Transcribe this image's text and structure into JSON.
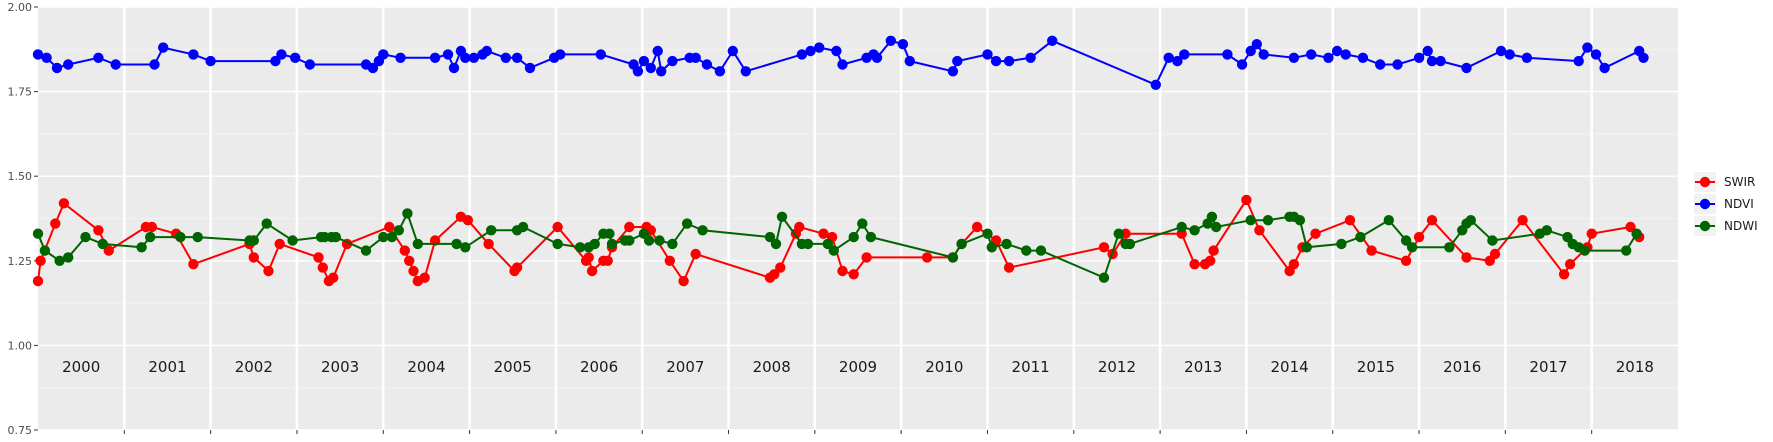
{
  "chart_data": {
    "type": "line",
    "title": "",
    "xlabel": "",
    "ylabel": "",
    "ylim": [
      0.75,
      2.0
    ],
    "y_ticks": [
      "0.75",
      "1.00",
      "1.25",
      "1.50",
      "1.75",
      "2.00"
    ],
    "x_range": [
      2000.0,
      2019.0
    ],
    "panels": [
      "2000",
      "2001",
      "2002",
      "2003",
      "2004",
      "2005",
      "2006",
      "2007",
      "2008",
      "2009",
      "2010",
      "2011",
      "2012",
      "2013",
      "2014",
      "2015",
      "2016",
      "2017",
      "2018"
    ],
    "grid": true,
    "legend_position": "right",
    "series": [
      {
        "name": "SWIR",
        "color": "#ff0000",
        "points": [
          [
            2000.0,
            1.19
          ],
          [
            2000.03,
            1.25
          ],
          [
            2000.2,
            1.36
          ],
          [
            2000.3,
            1.42
          ],
          [
            2000.7,
            1.34
          ],
          [
            2000.82,
            1.28
          ],
          [
            2001.25,
            1.35
          ],
          [
            2001.32,
            1.35
          ],
          [
            2001.6,
            1.33
          ],
          [
            2001.8,
            1.24
          ],
          [
            2002.45,
            1.3
          ],
          [
            2002.5,
            1.26
          ],
          [
            2002.67,
            1.22
          ],
          [
            2002.8,
            1.3
          ],
          [
            2003.25,
            1.26
          ],
          [
            2003.3,
            1.23
          ],
          [
            2003.37,
            1.19
          ],
          [
            2003.42,
            1.2
          ],
          [
            2003.58,
            1.3
          ],
          [
            2004.07,
            1.35
          ],
          [
            2004.25,
            1.28
          ],
          [
            2004.3,
            1.25
          ],
          [
            2004.35,
            1.22
          ],
          [
            2004.4,
            1.19
          ],
          [
            2004.48,
            1.2
          ],
          [
            2004.6,
            1.31
          ],
          [
            2004.9,
            1.38
          ],
          [
            2004.98,
            1.37
          ],
          [
            2005.22,
            1.3
          ],
          [
            2005.52,
            1.22
          ],
          [
            2005.55,
            1.23
          ],
          [
            2006.02,
            1.35
          ],
          [
            2006.35,
            1.25
          ],
          [
            2006.38,
            1.26
          ],
          [
            2006.42,
            1.22
          ],
          [
            2006.55,
            1.25
          ],
          [
            2006.6,
            1.25
          ],
          [
            2006.65,
            1.29
          ],
          [
            2006.85,
            1.35
          ],
          [
            2007.05,
            1.35
          ],
          [
            2007.1,
            1.34
          ],
          [
            2007.32,
            1.25
          ],
          [
            2007.48,
            1.19
          ],
          [
            2007.62,
            1.27
          ],
          [
            2008.48,
            1.2
          ],
          [
            2008.53,
            1.21
          ],
          [
            2008.6,
            1.23
          ],
          [
            2008.78,
            1.33
          ],
          [
            2008.82,
            1.35
          ],
          [
            2009.1,
            1.33
          ],
          [
            2009.2,
            1.32
          ],
          [
            2009.32,
            1.22
          ],
          [
            2009.45,
            1.21
          ],
          [
            2009.6,
            1.26
          ],
          [
            2010.3,
            1.26
          ],
          [
            2010.6,
            1.26
          ],
          [
            2010.7,
            1.3
          ],
          [
            2010.88,
            1.35
          ],
          [
            2011.1,
            1.31
          ],
          [
            2011.25,
            1.23
          ],
          [
            2012.35,
            1.29
          ],
          [
            2012.45,
            1.27
          ],
          [
            2012.6,
            1.33
          ],
          [
            2013.25,
            1.33
          ],
          [
            2013.4,
            1.24
          ],
          [
            2013.52,
            1.24
          ],
          [
            2013.58,
            1.25
          ],
          [
            2013.62,
            1.28
          ],
          [
            2014.0,
            1.43
          ],
          [
            2014.15,
            1.34
          ],
          [
            2014.5,
            1.22
          ],
          [
            2014.55,
            1.24
          ],
          [
            2014.65,
            1.29
          ],
          [
            2014.8,
            1.33
          ],
          [
            2015.2,
            1.37
          ],
          [
            2015.45,
            1.28
          ],
          [
            2015.85,
            1.25
          ],
          [
            2016.0,
            1.32
          ],
          [
            2016.15,
            1.37
          ],
          [
            2016.55,
            1.26
          ],
          [
            2016.82,
            1.25
          ],
          [
            2016.88,
            1.27
          ],
          [
            2017.2,
            1.37
          ],
          [
            2017.68,
            1.21
          ],
          [
            2017.75,
            1.24
          ],
          [
            2017.95,
            1.29
          ],
          [
            2018.0,
            1.33
          ],
          [
            2018.45,
            1.35
          ],
          [
            2018.55,
            1.32
          ]
        ]
      },
      {
        "name": "NDVI",
        "color": "#0000ff",
        "points": [
          [
            2000.0,
            1.86
          ],
          [
            2000.1,
            1.85
          ],
          [
            2000.22,
            1.82
          ],
          [
            2000.35,
            1.83
          ],
          [
            2000.7,
            1.85
          ],
          [
            2000.9,
            1.83
          ],
          [
            2001.35,
            1.83
          ],
          [
            2001.45,
            1.88
          ],
          [
            2001.8,
            1.86
          ],
          [
            2002.0,
            1.84
          ],
          [
            2002.75,
            1.84
          ],
          [
            2002.82,
            1.86
          ],
          [
            2002.98,
            1.85
          ],
          [
            2003.15,
            1.83
          ],
          [
            2003.8,
            1.83
          ],
          [
            2003.88,
            1.82
          ],
          [
            2003.95,
            1.84
          ],
          [
            2004.0,
            1.86
          ],
          [
            2004.2,
            1.85
          ],
          [
            2004.6,
            1.85
          ],
          [
            2004.75,
            1.86
          ],
          [
            2004.82,
            1.82
          ],
          [
            2004.9,
            1.87
          ],
          [
            2004.95,
            1.85
          ],
          [
            2005.05,
            1.85
          ],
          [
            2005.15,
            1.86
          ],
          [
            2005.2,
            1.87
          ],
          [
            2005.42,
            1.85
          ],
          [
            2005.55,
            1.85
          ],
          [
            2005.7,
            1.82
          ],
          [
            2005.98,
            1.85
          ],
          [
            2006.05,
            1.86
          ],
          [
            2006.52,
            1.86
          ],
          [
            2006.9,
            1.83
          ],
          [
            2006.95,
            1.81
          ],
          [
            2007.02,
            1.84
          ],
          [
            2007.1,
            1.82
          ],
          [
            2007.18,
            1.87
          ],
          [
            2007.22,
            1.81
          ],
          [
            2007.35,
            1.84
          ],
          [
            2007.55,
            1.85
          ],
          [
            2007.62,
            1.85
          ],
          [
            2007.75,
            1.83
          ],
          [
            2007.9,
            1.81
          ],
          [
            2008.05,
            1.87
          ],
          [
            2008.2,
            1.81
          ],
          [
            2008.85,
            1.86
          ],
          [
            2008.95,
            1.87
          ],
          [
            2009.05,
            1.88
          ],
          [
            2009.25,
            1.87
          ],
          [
            2009.32,
            1.83
          ],
          [
            2009.6,
            1.85
          ],
          [
            2009.68,
            1.86
          ],
          [
            2009.72,
            1.85
          ],
          [
            2009.88,
            1.9
          ],
          [
            2010.02,
            1.89
          ],
          [
            2010.1,
            1.84
          ],
          [
            2010.6,
            1.81
          ],
          [
            2010.65,
            1.84
          ],
          [
            2011.0,
            1.86
          ],
          [
            2011.1,
            1.84
          ],
          [
            2011.25,
            1.84
          ],
          [
            2011.5,
            1.85
          ],
          [
            2011.75,
            1.9
          ],
          [
            2012.95,
            1.77
          ],
          [
            2013.1,
            1.85
          ],
          [
            2013.2,
            1.84
          ],
          [
            2013.28,
            1.86
          ],
          [
            2013.78,
            1.86
          ],
          [
            2013.95,
            1.83
          ],
          [
            2014.05,
            1.87
          ],
          [
            2014.12,
            1.89
          ],
          [
            2014.2,
            1.86
          ],
          [
            2014.55,
            1.85
          ],
          [
            2014.75,
            1.86
          ],
          [
            2014.95,
            1.85
          ],
          [
            2015.05,
            1.87
          ],
          [
            2015.15,
            1.86
          ],
          [
            2015.35,
            1.85
          ],
          [
            2015.55,
            1.83
          ],
          [
            2015.75,
            1.83
          ],
          [
            2016.0,
            1.85
          ],
          [
            2016.1,
            1.87
          ],
          [
            2016.15,
            1.84
          ],
          [
            2016.25,
            1.84
          ],
          [
            2016.55,
            1.82
          ],
          [
            2016.95,
            1.87
          ],
          [
            2017.05,
            1.86
          ],
          [
            2017.25,
            1.85
          ],
          [
            2017.85,
            1.84
          ],
          [
            2017.95,
            1.88
          ],
          [
            2018.05,
            1.86
          ],
          [
            2018.15,
            1.82
          ],
          [
            2018.55,
            1.87
          ],
          [
            2018.6,
            1.85
          ]
        ]
      },
      {
        "name": "NDWI",
        "color": "#006400",
        "points": [
          [
            2000.0,
            1.33
          ],
          [
            2000.08,
            1.28
          ],
          [
            2000.25,
            1.25
          ],
          [
            2000.35,
            1.26
          ],
          [
            2000.55,
            1.32
          ],
          [
            2000.75,
            1.3
          ],
          [
            2001.2,
            1.29
          ],
          [
            2001.3,
            1.32
          ],
          [
            2001.65,
            1.32
          ],
          [
            2001.85,
            1.32
          ],
          [
            2002.45,
            1.31
          ],
          [
            2002.5,
            1.31
          ],
          [
            2002.65,
            1.36
          ],
          [
            2002.95,
            1.31
          ],
          [
            2003.28,
            1.32
          ],
          [
            2003.32,
            1.32
          ],
          [
            2003.4,
            1.32
          ],
          [
            2003.45,
            1.32
          ],
          [
            2003.8,
            1.28
          ],
          [
            2004.0,
            1.32
          ],
          [
            2004.1,
            1.32
          ],
          [
            2004.18,
            1.34
          ],
          [
            2004.28,
            1.39
          ],
          [
            2004.4,
            1.3
          ],
          [
            2004.85,
            1.3
          ],
          [
            2004.95,
            1.29
          ],
          [
            2005.25,
            1.34
          ],
          [
            2005.55,
            1.34
          ],
          [
            2005.62,
            1.35
          ],
          [
            2006.02,
            1.3
          ],
          [
            2006.28,
            1.29
          ],
          [
            2006.38,
            1.29
          ],
          [
            2006.45,
            1.3
          ],
          [
            2006.55,
            1.33
          ],
          [
            2006.62,
            1.33
          ],
          [
            2006.65,
            1.3
          ],
          [
            2006.8,
            1.31
          ],
          [
            2006.85,
            1.31
          ],
          [
            2007.02,
            1.33
          ],
          [
            2007.08,
            1.31
          ],
          [
            2007.2,
            1.31
          ],
          [
            2007.35,
            1.3
          ],
          [
            2007.52,
            1.36
          ],
          [
            2007.7,
            1.34
          ],
          [
            2008.48,
            1.32
          ],
          [
            2008.55,
            1.3
          ],
          [
            2008.62,
            1.38
          ],
          [
            2008.85,
            1.3
          ],
          [
            2008.92,
            1.3
          ],
          [
            2009.15,
            1.3
          ],
          [
            2009.22,
            1.28
          ],
          [
            2009.45,
            1.32
          ],
          [
            2009.55,
            1.36
          ],
          [
            2009.65,
            1.32
          ],
          [
            2010.6,
            1.26
          ],
          [
            2010.7,
            1.3
          ],
          [
            2011.0,
            1.33
          ],
          [
            2011.05,
            1.29
          ],
          [
            2011.22,
            1.3
          ],
          [
            2011.45,
            1.28
          ],
          [
            2011.62,
            1.28
          ],
          [
            2012.35,
            1.2
          ],
          [
            2012.52,
            1.33
          ],
          [
            2012.6,
            1.3
          ],
          [
            2012.65,
            1.3
          ],
          [
            2013.25,
            1.35
          ],
          [
            2013.4,
            1.34
          ],
          [
            2013.55,
            1.36
          ],
          [
            2013.6,
            1.38
          ],
          [
            2013.65,
            1.35
          ],
          [
            2014.05,
            1.37
          ],
          [
            2014.25,
            1.37
          ],
          [
            2014.5,
            1.38
          ],
          [
            2014.55,
            1.38
          ],
          [
            2014.62,
            1.37
          ],
          [
            2014.7,
            1.29
          ],
          [
            2015.1,
            1.3
          ],
          [
            2015.32,
            1.32
          ],
          [
            2015.65,
            1.37
          ],
          [
            2015.85,
            1.31
          ],
          [
            2015.92,
            1.29
          ],
          [
            2016.35,
            1.29
          ],
          [
            2016.5,
            1.34
          ],
          [
            2016.55,
            1.36
          ],
          [
            2016.6,
            1.37
          ],
          [
            2016.85,
            1.31
          ],
          [
            2017.4,
            1.33
          ],
          [
            2017.48,
            1.34
          ],
          [
            2017.72,
            1.32
          ],
          [
            2017.78,
            1.3
          ],
          [
            2017.85,
            1.29
          ],
          [
            2017.92,
            1.28
          ],
          [
            2018.4,
            1.28
          ],
          [
            2018.52,
            1.33
          ]
        ]
      }
    ]
  }
}
